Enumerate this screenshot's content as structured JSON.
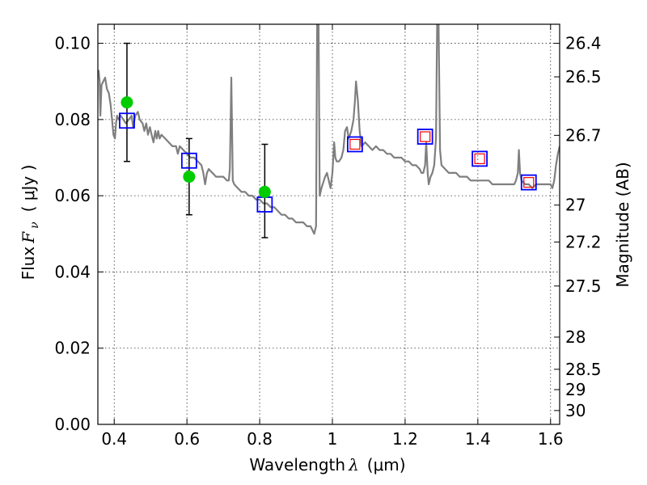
{
  "chart_data": {
    "type": "scatter",
    "xlabel": "Wavelength",
    "xlabel_symbol": "λ",
    "xlabel_unit": "(μm)",
    "ylabel": "Flux",
    "ylabel_symbol": "F",
    "ylabel_symbol_sub": "ν",
    "ylabel_unit": "( μJy )",
    "y2label": "Magnitude (AB)",
    "xlim": [
      0.355,
      1.625
    ],
    "ylim": [
      0.0,
      0.105
    ],
    "grid": true,
    "x_ticks": [
      {
        "value": 0.4,
        "label": "0.4"
      },
      {
        "value": 0.6,
        "label": "0.6"
      },
      {
        "value": 0.8,
        "label": "0.8"
      },
      {
        "value": 1.0,
        "label": "1"
      },
      {
        "value": 1.2,
        "label": "1.2"
      },
      {
        "value": 1.4,
        "label": "1.4"
      },
      {
        "value": 1.6,
        "label": "1.6"
      }
    ],
    "y_ticks": [
      {
        "value": 0.0,
        "label": "0.00"
      },
      {
        "value": 0.02,
        "label": "0.02"
      },
      {
        "value": 0.04,
        "label": "0.04"
      },
      {
        "value": 0.06,
        "label": "0.06"
      },
      {
        "value": 0.08,
        "label": "0.08"
      },
      {
        "value": 0.1,
        "label": "0.10"
      }
    ],
    "mag_ticks": [
      {
        "value": 26.4,
        "label": "26.4"
      },
      {
        "value": 26.5,
        "label": "26.5"
      },
      {
        "value": 26.7,
        "label": "26.7"
      },
      {
        "value": 27.0,
        "label": "27"
      },
      {
        "value": 27.2,
        "label": "27.2"
      },
      {
        "value": 27.5,
        "label": "27.5"
      },
      {
        "value": 28.0,
        "label": "28"
      },
      {
        "value": 28.5,
        "label": "28.5"
      },
      {
        "value": 29.0,
        "label": "29"
      },
      {
        "value": 30.0,
        "label": "30"
      }
    ],
    "series": [
      {
        "name": "model spectrum",
        "kind": "line",
        "color": "#7f7f7f",
        "points": [
          [
            0.357,
            0.093
          ],
          [
            0.36,
            0.09
          ],
          [
            0.362,
            0.081
          ],
          [
            0.365,
            0.089
          ],
          [
            0.37,
            0.09
          ],
          [
            0.375,
            0.091
          ],
          [
            0.38,
            0.088
          ],
          [
            0.385,
            0.087
          ],
          [
            0.39,
            0.084
          ],
          [
            0.395,
            0.079
          ],
          [
            0.398,
            0.076
          ],
          [
            0.402,
            0.075
          ],
          [
            0.405,
            0.079
          ],
          [
            0.408,
            0.081
          ],
          [
            0.412,
            0.08
          ],
          [
            0.418,
            0.081
          ],
          [
            0.425,
            0.08
          ],
          [
            0.432,
            0.079
          ],
          [
            0.44,
            0.08
          ],
          [
            0.448,
            0.081
          ],
          [
            0.452,
            0.078
          ],
          [
            0.458,
            0.081
          ],
          [
            0.465,
            0.082
          ],
          [
            0.47,
            0.08
          ],
          [
            0.478,
            0.079
          ],
          [
            0.483,
            0.077
          ],
          [
            0.488,
            0.079
          ],
          [
            0.493,
            0.076
          ],
          [
            0.498,
            0.078
          ],
          [
            0.503,
            0.076
          ],
          [
            0.508,
            0.074
          ],
          [
            0.513,
            0.077
          ],
          [
            0.517,
            0.075
          ],
          [
            0.521,
            0.077
          ],
          [
            0.525,
            0.075
          ],
          [
            0.53,
            0.076
          ],
          [
            0.54,
            0.075
          ],
          [
            0.55,
            0.074
          ],
          [
            0.56,
            0.073
          ],
          [
            0.57,
            0.073
          ],
          [
            0.575,
            0.071
          ],
          [
            0.58,
            0.073
          ],
          [
            0.59,
            0.072
          ],
          [
            0.6,
            0.071
          ],
          [
            0.61,
            0.07
          ],
          [
            0.62,
            0.07
          ],
          [
            0.63,
            0.069
          ],
          [
            0.64,
            0.068
          ],
          [
            0.645,
            0.066
          ],
          [
            0.65,
            0.063
          ],
          [
            0.655,
            0.066
          ],
          [
            0.66,
            0.067
          ],
          [
            0.67,
            0.066
          ],
          [
            0.68,
            0.065
          ],
          [
            0.69,
            0.065
          ],
          [
            0.7,
            0.065
          ],
          [
            0.71,
            0.064
          ],
          [
            0.715,
            0.064
          ],
          [
            0.718,
            0.067
          ],
          [
            0.72,
            0.078
          ],
          [
            0.722,
            0.091
          ],
          [
            0.724,
            0.078
          ],
          [
            0.726,
            0.064
          ],
          [
            0.73,
            0.063
          ],
          [
            0.74,
            0.062
          ],
          [
            0.75,
            0.061
          ],
          [
            0.76,
            0.061
          ],
          [
            0.77,
            0.06
          ],
          [
            0.78,
            0.06
          ],
          [
            0.79,
            0.059
          ],
          [
            0.8,
            0.059
          ],
          [
            0.81,
            0.058
          ],
          [
            0.82,
            0.058
          ],
          [
            0.83,
            0.057
          ],
          [
            0.84,
            0.057
          ],
          [
            0.85,
            0.056
          ],
          [
            0.86,
            0.055
          ],
          [
            0.87,
            0.055
          ],
          [
            0.88,
            0.054
          ],
          [
            0.89,
            0.054
          ],
          [
            0.9,
            0.053
          ],
          [
            0.91,
            0.053
          ],
          [
            0.92,
            0.053
          ],
          [
            0.93,
            0.052
          ],
          [
            0.94,
            0.052
          ],
          [
            0.945,
            0.051
          ],
          [
            0.95,
            0.05
          ],
          [
            0.955,
            0.052
          ],
          [
            0.958,
            0.105
          ],
          [
            0.962,
            0.105
          ],
          [
            0.965,
            0.06
          ],
          [
            0.97,
            0.062
          ],
          [
            0.98,
            0.065
          ],
          [
            0.985,
            0.066
          ],
          [
            0.99,
            0.064
          ],
          [
            0.995,
            0.062
          ],
          [
            1.0,
            0.066
          ],
          [
            1.005,
            0.074
          ],
          [
            1.008,
            0.07
          ],
          [
            1.012,
            0.069
          ],
          [
            1.018,
            0.069
          ],
          [
            1.025,
            0.07
          ],
          [
            1.03,
            0.072
          ],
          [
            1.035,
            0.077
          ],
          [
            1.04,
            0.078
          ],
          [
            1.045,
            0.075
          ],
          [
            1.052,
            0.077
          ],
          [
            1.058,
            0.08
          ],
          [
            1.062,
            0.085
          ],
          [
            1.065,
            0.09
          ],
          [
            1.07,
            0.085
          ],
          [
            1.075,
            0.077
          ],
          [
            1.08,
            0.073
          ],
          [
            1.09,
            0.074
          ],
          [
            1.1,
            0.073
          ],
          [
            1.11,
            0.072
          ],
          [
            1.12,
            0.073
          ],
          [
            1.13,
            0.072
          ],
          [
            1.14,
            0.072
          ],
          [
            1.15,
            0.071
          ],
          [
            1.16,
            0.071
          ],
          [
            1.17,
            0.07
          ],
          [
            1.18,
            0.07
          ],
          [
            1.19,
            0.07
          ],
          [
            1.2,
            0.069
          ],
          [
            1.21,
            0.069
          ],
          [
            1.22,
            0.068
          ],
          [
            1.23,
            0.068
          ],
          [
            1.24,
            0.067
          ],
          [
            1.245,
            0.066
          ],
          [
            1.25,
            0.066
          ],
          [
            1.255,
            0.068
          ],
          [
            1.258,
            0.074
          ],
          [
            1.262,
            0.066
          ],
          [
            1.265,
            0.063
          ],
          [
            1.27,
            0.065
          ],
          [
            1.275,
            0.066
          ],
          [
            1.28,
            0.068
          ],
          [
            1.285,
            0.075
          ],
          [
            1.288,
            0.105
          ],
          [
            1.292,
            0.105
          ],
          [
            1.296,
            0.072
          ],
          [
            1.3,
            0.068
          ],
          [
            1.31,
            0.067
          ],
          [
            1.32,
            0.066
          ],
          [
            1.33,
            0.066
          ],
          [
            1.34,
            0.066
          ],
          [
            1.35,
            0.065
          ],
          [
            1.36,
            0.065
          ],
          [
            1.37,
            0.065
          ],
          [
            1.38,
            0.064
          ],
          [
            1.39,
            0.064
          ],
          [
            1.4,
            0.064
          ],
          [
            1.41,
            0.064
          ],
          [
            1.42,
            0.064
          ],
          [
            1.43,
            0.064
          ],
          [
            1.44,
            0.063
          ],
          [
            1.45,
            0.063
          ],
          [
            1.46,
            0.063
          ],
          [
            1.47,
            0.063
          ],
          [
            1.48,
            0.063
          ],
          [
            1.49,
            0.063
          ],
          [
            1.5,
            0.063
          ],
          [
            1.505,
            0.064
          ],
          [
            1.51,
            0.066
          ],
          [
            1.513,
            0.072
          ],
          [
            1.516,
            0.066
          ],
          [
            1.52,
            0.064
          ],
          [
            1.53,
            0.063
          ],
          [
            1.54,
            0.063
          ],
          [
            1.55,
            0.062
          ],
          [
            1.56,
            0.063
          ],
          [
            1.57,
            0.063
          ],
          [
            1.58,
            0.063
          ],
          [
            1.59,
            0.063
          ],
          [
            1.6,
            0.063
          ],
          [
            1.605,
            0.062
          ],
          [
            1.61,
            0.064
          ],
          [
            1.615,
            0.068
          ],
          [
            1.62,
            0.071
          ],
          [
            1.625,
            0.073
          ]
        ]
      },
      {
        "name": "observed photometry",
        "kind": "points-with-errors",
        "color": "#00cc00",
        "points": [
          {
            "x": 0.435,
            "y": 0.0845,
            "yerr_low": 0.069,
            "yerr_high": 0.1
          },
          {
            "x": 0.606,
            "y": 0.065,
            "yerr_low": 0.055,
            "yerr_high": 0.075
          },
          {
            "x": 0.814,
            "y": 0.061,
            "yerr_low": 0.049,
            "yerr_high": 0.0735
          }
        ]
      },
      {
        "name": "model photometry",
        "kind": "open-squares",
        "color": "#0000ff",
        "points": [
          {
            "x": 0.435,
            "y": 0.0797
          },
          {
            "x": 0.606,
            "y": 0.0692
          },
          {
            "x": 0.814,
            "y": 0.0577
          },
          {
            "x": 1.062,
            "y": 0.0735
          },
          {
            "x": 1.255,
            "y": 0.0755
          },
          {
            "x": 1.405,
            "y": 0.0697
          },
          {
            "x": 1.54,
            "y": 0.0635
          }
        ]
      },
      {
        "name": "model photometry (IR)",
        "kind": "open-squares-small",
        "color": "#ff0000",
        "points": [
          {
            "x": 1.062,
            "y": 0.0735
          },
          {
            "x": 1.255,
            "y": 0.0755
          },
          {
            "x": 1.405,
            "y": 0.0697
          },
          {
            "x": 1.54,
            "y": 0.0635
          }
        ]
      }
    ]
  }
}
